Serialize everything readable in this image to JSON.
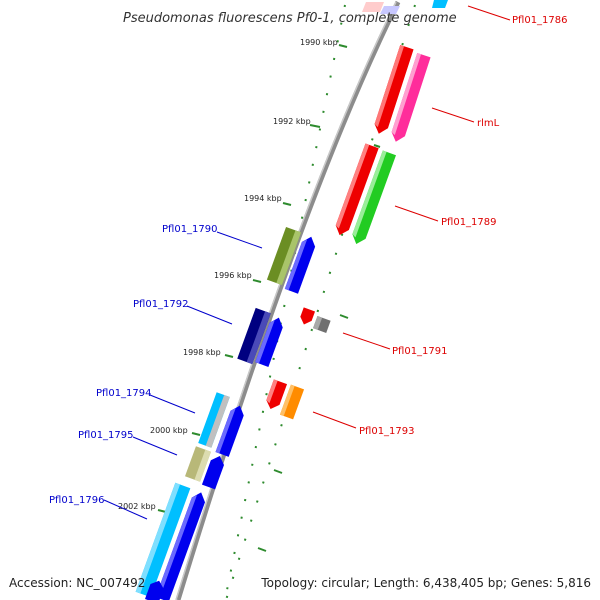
{
  "title": "Pseudomonas fluorescens Pf0-1, complete genome",
  "footer": {
    "accession": "Accession: NC_007492",
    "summary": "Topology: circular; Length: 6,438,405 bp; Genes: 5,816"
  },
  "colors": {
    "backbone": "#8c8c8c",
    "tick": "#2e8b2e",
    "forward_label": "#0000cc",
    "reverse_label": "#dd0000"
  },
  "ticks": [
    {
      "label": "1990 kbp"
    },
    {
      "label": "1992 kbp"
    },
    {
      "label": "1994 kbp"
    },
    {
      "label": "1996 kbp"
    },
    {
      "label": "1998 kbp"
    },
    {
      "label": "2000 kbp"
    },
    {
      "label": "2002 kbp"
    }
  ],
  "genes": [
    {
      "name": "Pfl01_1786",
      "strand": "reverse",
      "label": "Pfl01_1786"
    },
    {
      "name": "rlmL",
      "strand": "reverse",
      "label": "rlmL"
    },
    {
      "name": "Pfl01_1789",
      "strand": "reverse",
      "label": "Pfl01_1789"
    },
    {
      "name": "Pfl01_1790",
      "strand": "forward",
      "label": "Pfl01_1790"
    },
    {
      "name": "Pfl01_1791",
      "strand": "reverse",
      "label": "Pfl01_1791"
    },
    {
      "name": "Pfl01_1792",
      "strand": "forward",
      "label": "Pfl01_1792"
    },
    {
      "name": "Pfl01_1793",
      "strand": "reverse",
      "label": "Pfl01_1793"
    },
    {
      "name": "Pfl01_1794",
      "strand": "forward",
      "label": "Pfl01_1794"
    },
    {
      "name": "Pfl01_1795",
      "strand": "forward",
      "label": "Pfl01_1795"
    },
    {
      "name": "Pfl01_1796",
      "strand": "forward",
      "label": "Pfl01_1796"
    }
  ]
}
